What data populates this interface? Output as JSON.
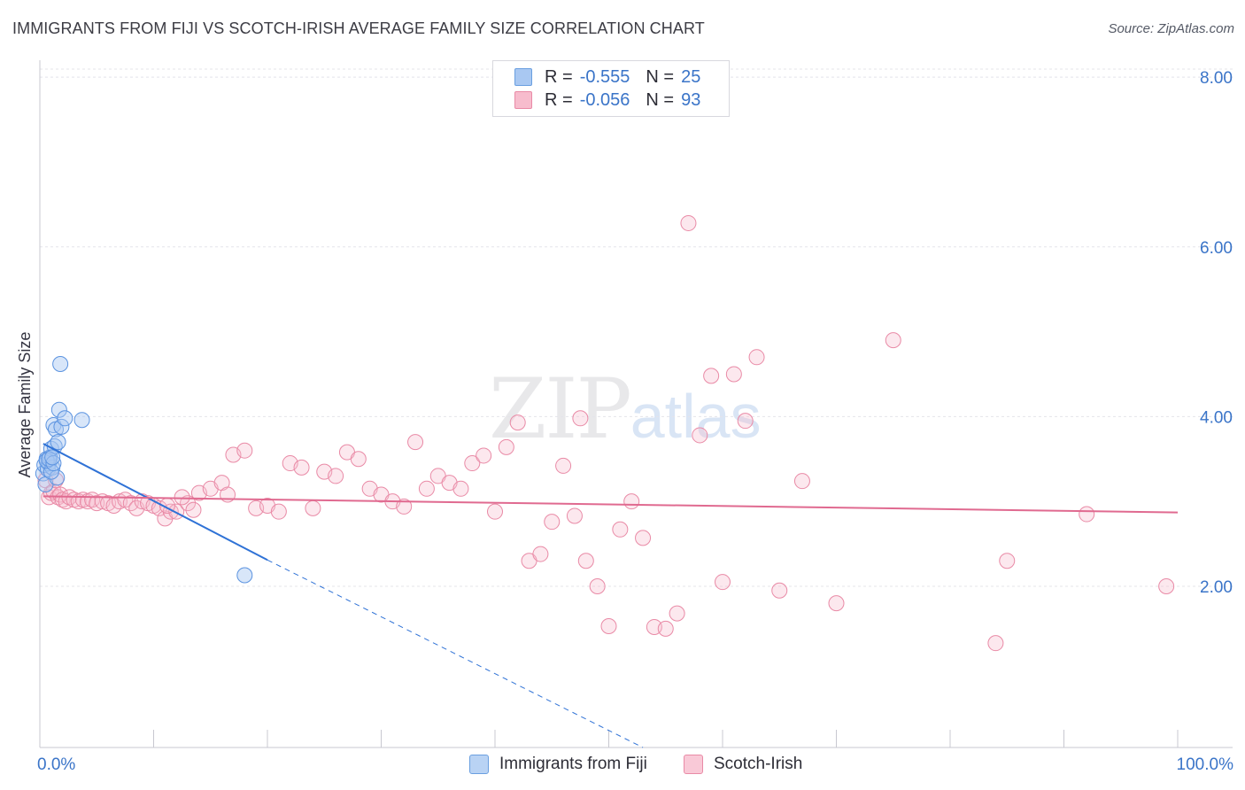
{
  "title": "IMMIGRANTS FROM FIJI VS SCOTCH-IRISH AVERAGE FAMILY SIZE CORRELATION CHART",
  "source": "Source: ZipAtlas.com",
  "watermark": {
    "zip": "ZIP",
    "atlas": "atlas"
  },
  "legend_stats": [
    {
      "r_label": "R =",
      "r_value": "-0.555",
      "n_label": "N =",
      "n_value": "25",
      "color": "#a9c8f2",
      "border": "#6a9fe0"
    },
    {
      "r_label": "R =",
      "r_value": "-0.056",
      "n_label": "N =",
      "n_value": "93",
      "color": "#f7bccd",
      "border": "#e98aa6"
    }
  ],
  "colors": {
    "fiji": "#5b93e0",
    "fiji_line": "#2f72d6",
    "scotch": "#e98aa6",
    "scotch_line": "#e06a90",
    "tick_label": "#3a74c8",
    "grid": "#e4e4ea",
    "axis": "#c8c8d0"
  },
  "chart_data": {
    "type": "scatter",
    "xlabel": "",
    "ylabel": "Average Family Size",
    "xlim": [
      0,
      100
    ],
    "ylim": [
      0.1,
      8.2
    ],
    "y_ticks": [
      2.0,
      4.0,
      6.0,
      8.0
    ],
    "y_tick_labels": [
      "2.00",
      "4.00",
      "6.00",
      "8.00"
    ],
    "x_tick_labels": [
      "0.0%",
      "100.0%"
    ],
    "x_minor_ticks": [
      0,
      10,
      20,
      30,
      40,
      50,
      60,
      70,
      80,
      90,
      100
    ],
    "grid": true,
    "legend_position": "top-center",
    "series": [
      {
        "name": "Immigrants from Fiji",
        "trend": {
          "x0": 0.3,
          "y0": 3.68,
          "x1": 20,
          "y1": 2.31,
          "dashed_to_x": 53,
          "dashed_to_y": 0.1
        },
        "points": [
          [
            0.3,
            3.33
          ],
          [
            0.4,
            3.43
          ],
          [
            0.5,
            3.2
          ],
          [
            0.6,
            3.5
          ],
          [
            0.7,
            3.38
          ],
          [
            0.8,
            3.45
          ],
          [
            0.9,
            3.52
          ],
          [
            1.0,
            3.62
          ],
          [
            1.1,
            3.4
          ],
          [
            1.2,
            3.9
          ],
          [
            1.3,
            3.65
          ],
          [
            1.4,
            3.85
          ],
          [
            1.5,
            3.28
          ],
          [
            1.6,
            3.7
          ],
          [
            1.7,
            4.08
          ],
          [
            1.8,
            4.62
          ],
          [
            1.9,
            3.88
          ],
          [
            2.2,
            3.98
          ],
          [
            1.0,
            3.35
          ],
          [
            0.6,
            3.48
          ],
          [
            0.8,
            3.5
          ],
          [
            1.2,
            3.45
          ],
          [
            3.7,
            3.96
          ],
          [
            1.1,
            3.52
          ],
          [
            18.0,
            2.13
          ]
        ]
      },
      {
        "name": "Scotch-Irish",
        "trend": {
          "x0": 0.3,
          "y0": 3.06,
          "x1": 100,
          "y1": 2.87
        },
        "points": [
          [
            0.5,
            3.25
          ],
          [
            0.8,
            3.05
          ],
          [
            1.0,
            3.1
          ],
          [
            1.2,
            3.12
          ],
          [
            1.4,
            3.25
          ],
          [
            1.6,
            3.05
          ],
          [
            1.8,
            3.08
          ],
          [
            2.0,
            3.02
          ],
          [
            2.3,
            3.0
          ],
          [
            2.6,
            3.05
          ],
          [
            3.0,
            3.02
          ],
          [
            3.4,
            3.0
          ],
          [
            3.8,
            3.02
          ],
          [
            4.2,
            3.0
          ],
          [
            4.6,
            3.02
          ],
          [
            5.0,
            2.98
          ],
          [
            5.5,
            3.0
          ],
          [
            6.0,
            2.98
          ],
          [
            6.5,
            2.95
          ],
          [
            7.0,
            3.0
          ],
          [
            7.5,
            3.02
          ],
          [
            8.0,
            2.98
          ],
          [
            8.5,
            2.92
          ],
          [
            9.0,
            3.0
          ],
          [
            9.5,
            2.98
          ],
          [
            10.0,
            2.95
          ],
          [
            10.5,
            2.92
          ],
          [
            11.0,
            2.8
          ],
          [
            11.5,
            2.88
          ],
          [
            12.0,
            2.88
          ],
          [
            13.0,
            2.98
          ],
          [
            13.5,
            2.9
          ],
          [
            14.0,
            3.1
          ],
          [
            15.0,
            3.15
          ],
          [
            16.0,
            3.22
          ],
          [
            12.5,
            3.05
          ],
          [
            11.2,
            2.95
          ],
          [
            16.5,
            3.08
          ],
          [
            17.0,
            3.55
          ],
          [
            18.0,
            3.6
          ],
          [
            19.0,
            2.92
          ],
          [
            20.0,
            2.95
          ],
          [
            21.0,
            2.88
          ],
          [
            22.0,
            3.45
          ],
          [
            23.0,
            3.4
          ],
          [
            24.0,
            2.92
          ],
          [
            25.0,
            3.35
          ],
          [
            26.0,
            3.3
          ],
          [
            27.0,
            3.58
          ],
          [
            28.0,
            3.5
          ],
          [
            29.0,
            3.15
          ],
          [
            30.0,
            3.08
          ],
          [
            31.0,
            3.0
          ],
          [
            32.0,
            2.94
          ],
          [
            33.0,
            3.7
          ],
          [
            34.0,
            3.15
          ],
          [
            35.0,
            3.3
          ],
          [
            36.0,
            3.22
          ],
          [
            37.0,
            3.15
          ],
          [
            38.0,
            3.45
          ],
          [
            39.0,
            3.54
          ],
          [
            40.0,
            2.88
          ],
          [
            41.0,
            3.64
          ],
          [
            42.0,
            3.93
          ],
          [
            43.0,
            2.3
          ],
          [
            44.0,
            2.38
          ],
          [
            45.0,
            2.76
          ],
          [
            46.0,
            3.42
          ],
          [
            47.0,
            2.83
          ],
          [
            47.5,
            3.98
          ],
          [
            48.0,
            2.3
          ],
          [
            49.0,
            2.0
          ],
          [
            50.0,
            1.53
          ],
          [
            51.0,
            2.67
          ],
          [
            52.0,
            3.0
          ],
          [
            53.0,
            2.57
          ],
          [
            54.0,
            1.52
          ],
          [
            55.0,
            1.5
          ],
          [
            56.0,
            1.68
          ],
          [
            57.0,
            6.28
          ],
          [
            58.0,
            3.78
          ],
          [
            59.0,
            4.48
          ],
          [
            60.0,
            2.05
          ],
          [
            61.0,
            4.5
          ],
          [
            62.0,
            3.95
          ],
          [
            63.0,
            4.7
          ],
          [
            65.0,
            1.95
          ],
          [
            67.0,
            3.24
          ],
          [
            70.0,
            1.8
          ],
          [
            75.0,
            4.9
          ],
          [
            84.0,
            1.33
          ],
          [
            85.0,
            2.3
          ],
          [
            92.0,
            2.85
          ],
          [
            99.0,
            2.0
          ]
        ]
      }
    ]
  },
  "bottom_legend": [
    {
      "label": "Immigrants from Fiji",
      "color": "#b9d3f4",
      "border": "#6a9fe0"
    },
    {
      "label": "Scotch-Irish",
      "color": "#f9c9d7",
      "border": "#e98aa6"
    }
  ]
}
